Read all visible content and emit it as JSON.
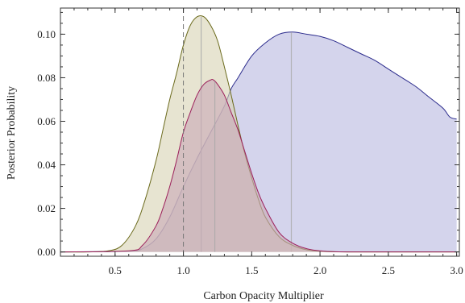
{
  "chart_data": {
    "type": "area",
    "title": "",
    "xlabel": "Carbon Opacity Multiplier",
    "ylabel": "Posterior Probability",
    "xlim": [
      0.1,
      3.02
    ],
    "ylim": [
      -0.002,
      0.112
    ],
    "x_ticks": [
      "0.5",
      "1.0",
      "1.5",
      "2.0",
      "2.5",
      "3.0"
    ],
    "x_tick_values": [
      0.5,
      1.0,
      1.5,
      2.0,
      2.5,
      3.0
    ],
    "y_ticks": [
      "0.00",
      "0.02",
      "0.04",
      "0.06",
      "0.08",
      "0.10"
    ],
    "y_tick_values": [
      0.0,
      0.02,
      0.04,
      0.06,
      0.08,
      0.1
    ],
    "grid": false,
    "reference_line": {
      "x": 1.0,
      "style": "dashed",
      "color": "#777777"
    },
    "series": [
      {
        "color": "#6b6a1c",
        "fill": "#d8d3b4",
        "median_line_x": 1.13,
        "x": [
          0.1,
          0.3,
          0.45,
          0.55,
          0.65,
          0.72,
          0.8,
          0.85,
          0.9,
          0.95,
          1.0,
          1.05,
          1.1,
          1.15,
          1.2,
          1.25,
          1.3,
          1.35,
          1.4,
          1.45,
          1.5,
          1.55,
          1.6,
          1.7,
          1.8,
          1.9,
          2.0,
          2.2,
          3.0
        ],
        "y": [
          0.0,
          0.0,
          0.0005,
          0.003,
          0.012,
          0.024,
          0.042,
          0.056,
          0.07,
          0.082,
          0.095,
          0.104,
          0.108,
          0.108,
          0.104,
          0.097,
          0.085,
          0.072,
          0.058,
          0.045,
          0.034,
          0.024,
          0.016,
          0.007,
          0.003,
          0.001,
          0.0003,
          0.0,
          0.0
        ]
      },
      {
        "color": "#9c1f5a",
        "fill": "#c9a9b6",
        "median_line_x": 1.23,
        "x": [
          0.1,
          0.6,
          0.7,
          0.8,
          0.85,
          0.9,
          0.95,
          1.0,
          1.05,
          1.1,
          1.15,
          1.2,
          1.22,
          1.25,
          1.3,
          1.35,
          1.4,
          1.45,
          1.5,
          1.55,
          1.6,
          1.7,
          1.8,
          1.9,
          2.0,
          2.2,
          3.0
        ],
        "y": [
          0.0,
          0.0005,
          0.003,
          0.012,
          0.02,
          0.03,
          0.042,
          0.055,
          0.064,
          0.072,
          0.077,
          0.079,
          0.079,
          0.077,
          0.072,
          0.064,
          0.056,
          0.046,
          0.036,
          0.027,
          0.02,
          0.009,
          0.004,
          0.0015,
          0.0005,
          0.0,
          0.0
        ]
      },
      {
        "color": "#2b2b8c",
        "fill": "#b9b9e0",
        "median_line_x": 1.79,
        "x": [
          0.1,
          0.6,
          0.7,
          0.8,
          0.9,
          1.0,
          1.1,
          1.2,
          1.3,
          1.35,
          1.4,
          1.5,
          1.6,
          1.7,
          1.8,
          1.9,
          2.0,
          2.1,
          2.2,
          2.3,
          2.4,
          2.5,
          2.6,
          2.7,
          2.8,
          2.9,
          2.95,
          3.0
        ],
        "y": [
          0.0,
          0.0003,
          0.0015,
          0.006,
          0.016,
          0.03,
          0.043,
          0.055,
          0.067,
          0.075,
          0.08,
          0.09,
          0.096,
          0.1,
          0.101,
          0.1,
          0.099,
          0.097,
          0.094,
          0.091,
          0.088,
          0.084,
          0.08,
          0.076,
          0.071,
          0.066,
          0.062,
          0.061
        ]
      }
    ]
  }
}
